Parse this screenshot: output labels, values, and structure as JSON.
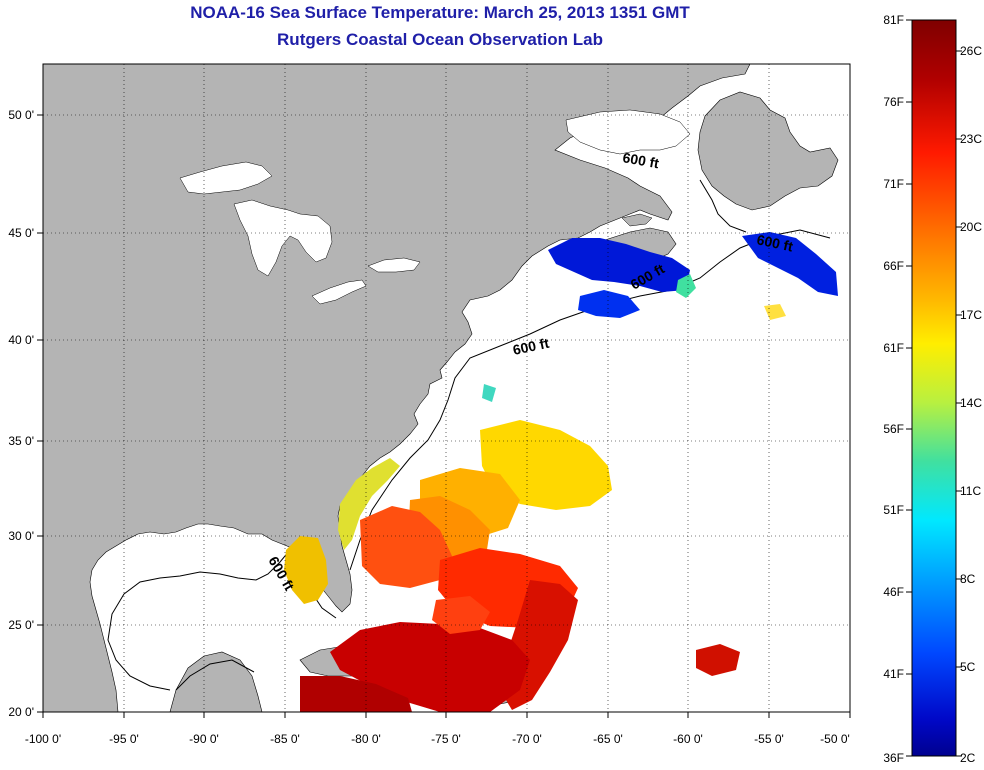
{
  "header": {
    "title": "NOAA-16 Sea Surface Temperature:  March 25, 2013 1351 GMT",
    "subtitle": "Rutgers Coastal Ocean Observation Lab"
  },
  "map": {
    "lon_range": [
      -100,
      -50
    ],
    "lat_range": [
      20,
      52.5
    ],
    "lon_ticks": [
      "-100 0'",
      "-95 0'",
      "-90 0'",
      "-85 0'",
      "-80 0'",
      "-75 0'",
      "-70 0'",
      "-65 0'",
      "-60 0'",
      "-55 0'",
      "-50 0'"
    ],
    "lat_ticks": [
      "20 0'",
      "25 0'",
      "30 0'",
      "35 0'",
      "40 0'",
      "45 0'",
      "50 0'"
    ],
    "land_color": "#b4b4b4",
    "ocean_color": "#ffffff",
    "grid": "dotted",
    "contour_labels": [
      "600 ft",
      "600 ft",
      "600 ft",
      "600 ft",
      "600 ft"
    ]
  },
  "colorbar": {
    "placement": "right",
    "f_labels": [
      "81F",
      "76F",
      "71F",
      "66F",
      "61F",
      "56F",
      "51F",
      "46F",
      "41F",
      "36F"
    ],
    "c_labels": [
      "26C",
      "23C",
      "20C",
      "17C",
      "14C",
      "11C",
      "8C",
      "5C",
      "2C"
    ],
    "colors": [
      "#7f0000",
      "#c00000",
      "#ff2000",
      "#ff6a00",
      "#ffb000",
      "#ffea00",
      "#b8f040",
      "#40e0a0",
      "#00e8ff",
      "#00a0ff",
      "#0050ff",
      "#0010d0",
      "#00008f"
    ]
  }
}
